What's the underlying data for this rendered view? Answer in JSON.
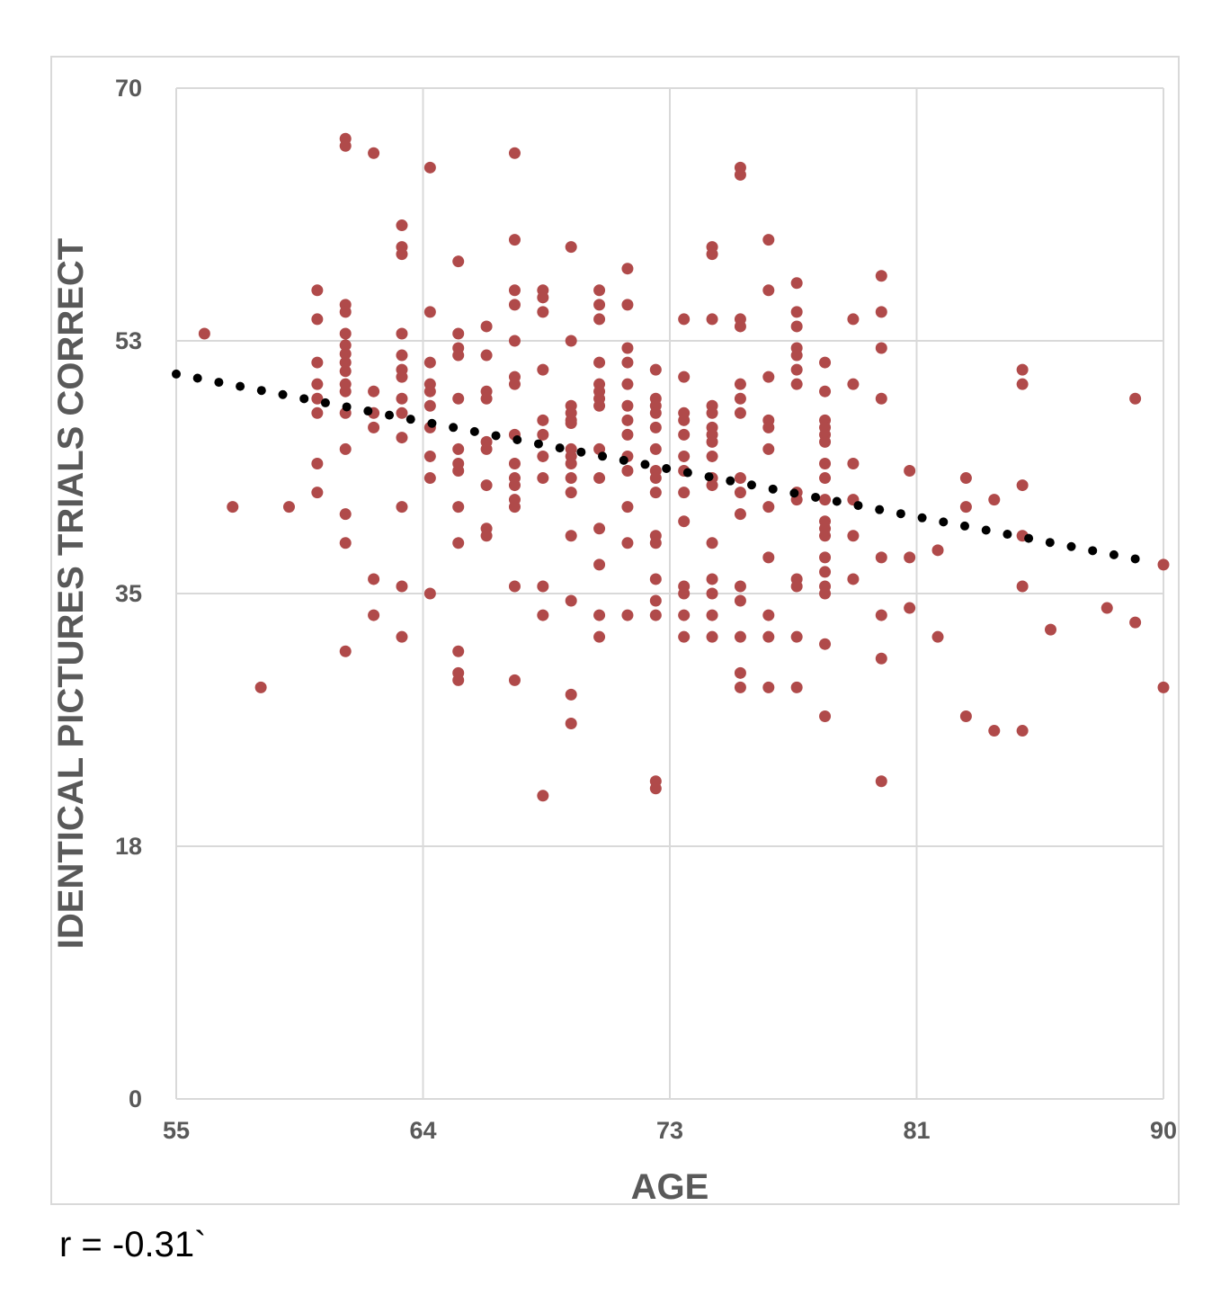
{
  "chart_data": {
    "type": "scatter",
    "title": "",
    "xlabel": "AGE",
    "ylabel": "IDENTICAL PICTURES TRIALS CORRECT",
    "xlim": [
      55,
      90
    ],
    "ylim": [
      0,
      70
    ],
    "x_ticks": [
      {
        "value": 55,
        "label": "55"
      },
      {
        "value": 63.75,
        "label": "64"
      },
      {
        "value": 72.5,
        "label": "73"
      },
      {
        "value": 81.25,
        "label": "81"
      },
      {
        "value": 90,
        "label": "90"
      }
    ],
    "y_ticks": [
      {
        "value": 0,
        "label": "0"
      },
      {
        "value": 17.5,
        "label": "18"
      },
      {
        "value": 35,
        "label": "35"
      },
      {
        "value": 52.5,
        "label": "53"
      },
      {
        "value": 70,
        "label": "70"
      }
    ],
    "grid": true,
    "trendline": {
      "style": "dotted",
      "color": "#000000",
      "x": [
        55,
        89
      ],
      "y": [
        50.2,
        37.4
      ]
    },
    "series": [
      {
        "color": "#b04a4a",
        "points": [
          [
            56,
            53
          ],
          [
            57,
            41
          ],
          [
            58,
            28.5
          ],
          [
            59,
            41
          ],
          [
            60,
            56
          ],
          [
            60,
            54
          ],
          [
            60,
            51
          ],
          [
            60,
            49.5
          ],
          [
            60,
            48.5
          ],
          [
            60,
            47.5
          ],
          [
            60,
            44
          ],
          [
            60,
            42
          ],
          [
            61,
            66.5
          ],
          [
            61,
            66
          ],
          [
            61,
            55
          ],
          [
            61,
            54.5
          ],
          [
            61,
            53
          ],
          [
            61,
            52.2
          ],
          [
            61,
            51.6
          ],
          [
            61,
            51
          ],
          [
            61,
            50.4
          ],
          [
            61,
            49.5
          ],
          [
            61,
            49
          ],
          [
            61,
            47.5
          ],
          [
            61,
            45
          ],
          [
            61,
            40.5
          ],
          [
            61,
            38.5
          ],
          [
            61,
            31
          ],
          [
            62,
            65.5
          ],
          [
            62,
            49
          ],
          [
            62,
            47.5
          ],
          [
            62,
            46.5
          ],
          [
            62,
            36
          ],
          [
            62,
            33.5
          ],
          [
            63,
            60.5
          ],
          [
            63,
            59
          ],
          [
            63,
            58.5
          ],
          [
            63,
            53
          ],
          [
            63,
            51.5
          ],
          [
            63,
            50.5
          ],
          [
            63,
            50
          ],
          [
            63,
            48.5
          ],
          [
            63,
            47.5
          ],
          [
            63,
            45.8
          ],
          [
            63,
            41
          ],
          [
            63,
            35.5
          ],
          [
            63,
            32
          ],
          [
            64,
            64.5
          ],
          [
            64,
            54.5
          ],
          [
            64,
            51
          ],
          [
            64,
            49.5
          ],
          [
            64,
            49
          ],
          [
            64,
            48
          ],
          [
            64,
            46.5
          ],
          [
            64,
            44.5
          ],
          [
            64,
            43
          ],
          [
            64,
            35
          ],
          [
            65,
            58
          ],
          [
            65,
            53
          ],
          [
            65,
            52
          ],
          [
            65,
            51.5
          ],
          [
            65,
            48.5
          ],
          [
            65,
            45
          ],
          [
            65,
            44
          ],
          [
            65,
            43.5
          ],
          [
            65,
            41
          ],
          [
            65,
            38.5
          ],
          [
            65,
            31
          ],
          [
            65,
            29.5
          ],
          [
            65,
            29
          ],
          [
            66,
            53.5
          ],
          [
            66,
            51.5
          ],
          [
            66,
            49
          ],
          [
            66,
            48.5
          ],
          [
            66,
            45.5
          ],
          [
            66,
            45
          ],
          [
            66,
            42.5
          ],
          [
            66,
            39.5
          ],
          [
            66,
            39
          ],
          [
            67,
            65.5
          ],
          [
            67,
            59.5
          ],
          [
            67,
            56
          ],
          [
            67,
            55
          ],
          [
            67,
            52.5
          ],
          [
            67,
            50
          ],
          [
            67,
            49.5
          ],
          [
            67,
            46
          ],
          [
            67,
            44
          ],
          [
            67,
            43
          ],
          [
            67,
            42.5
          ],
          [
            67,
            41.5
          ],
          [
            67,
            41
          ],
          [
            67,
            35.5
          ],
          [
            67,
            29
          ],
          [
            68,
            56
          ],
          [
            68,
            55.5
          ],
          [
            68,
            54.5
          ],
          [
            68,
            50.5
          ],
          [
            68,
            47
          ],
          [
            68,
            46
          ],
          [
            68,
            44.5
          ],
          [
            68,
            43
          ],
          [
            68,
            35.5
          ],
          [
            68,
            33.5
          ],
          [
            68,
            21
          ],
          [
            69,
            59
          ],
          [
            69,
            52.5
          ],
          [
            69,
            48
          ],
          [
            69,
            47.5
          ],
          [
            69,
            47
          ],
          [
            69,
            46.8
          ],
          [
            69,
            45
          ],
          [
            69,
            44.5
          ],
          [
            69,
            44
          ],
          [
            69,
            43
          ],
          [
            69,
            42
          ],
          [
            69,
            39
          ],
          [
            69,
            34.5
          ],
          [
            69,
            28
          ],
          [
            69,
            26
          ],
          [
            70,
            56
          ],
          [
            70,
            55
          ],
          [
            70,
            54
          ],
          [
            70,
            51
          ],
          [
            70,
            49.5
          ],
          [
            70,
            49
          ],
          [
            70,
            48.5
          ],
          [
            70,
            48
          ],
          [
            70,
            45
          ],
          [
            70,
            43
          ],
          [
            70,
            39.5
          ],
          [
            70,
            37
          ],
          [
            70,
            33.5
          ],
          [
            70,
            32
          ],
          [
            71,
            57.5
          ],
          [
            71,
            55
          ],
          [
            71,
            52
          ],
          [
            71,
            51
          ],
          [
            71,
            49.5
          ],
          [
            71,
            48
          ],
          [
            71,
            47
          ],
          [
            71,
            46
          ],
          [
            71,
            44.5
          ],
          [
            71,
            43.5
          ],
          [
            71,
            41
          ],
          [
            71,
            38.5
          ],
          [
            71,
            33.5
          ],
          [
            72,
            50.5
          ],
          [
            72,
            48.5
          ],
          [
            72,
            48
          ],
          [
            72,
            47.5
          ],
          [
            72,
            46.5
          ],
          [
            72,
            45
          ],
          [
            72,
            43.5
          ],
          [
            72,
            43
          ],
          [
            72,
            42
          ],
          [
            72,
            39
          ],
          [
            72,
            38.5
          ],
          [
            72,
            36
          ],
          [
            72,
            34.5
          ],
          [
            72,
            33.5
          ],
          [
            72,
            22
          ],
          [
            72,
            21.5
          ],
          [
            73,
            54
          ],
          [
            73,
            50
          ],
          [
            73,
            47.5
          ],
          [
            73,
            47
          ],
          [
            73,
            46
          ],
          [
            73,
            44.5
          ],
          [
            73,
            43.5
          ],
          [
            73,
            42
          ],
          [
            73,
            40
          ],
          [
            73,
            35.5
          ],
          [
            73,
            35
          ],
          [
            73,
            33.5
          ],
          [
            73,
            32
          ],
          [
            74,
            59
          ],
          [
            74,
            58.5
          ],
          [
            74,
            54
          ],
          [
            74,
            48
          ],
          [
            74,
            47.5
          ],
          [
            74,
            46.5
          ],
          [
            74,
            46
          ],
          [
            74,
            45.5
          ],
          [
            74,
            44.5
          ],
          [
            74,
            43
          ],
          [
            74,
            42.5
          ],
          [
            74,
            38.5
          ],
          [
            74,
            36
          ],
          [
            74,
            35
          ],
          [
            74,
            33.5
          ],
          [
            74,
            32
          ],
          [
            75,
            64.5
          ],
          [
            75,
            64
          ],
          [
            75,
            54
          ],
          [
            75,
            53.5
          ],
          [
            75,
            49.5
          ],
          [
            75,
            48.5
          ],
          [
            75,
            47.5
          ],
          [
            75,
            43
          ],
          [
            75,
            42
          ],
          [
            75,
            40.5
          ],
          [
            75,
            35.5
          ],
          [
            75,
            34.5
          ],
          [
            75,
            32
          ],
          [
            75,
            29.5
          ],
          [
            75,
            28.5
          ],
          [
            76,
            59.5
          ],
          [
            76,
            56
          ],
          [
            76,
            50
          ],
          [
            76,
            47
          ],
          [
            76,
            46.5
          ],
          [
            76,
            45
          ],
          [
            76,
            41
          ],
          [
            76,
            37.5
          ],
          [
            76,
            33.5
          ],
          [
            76,
            32
          ],
          [
            76,
            28.5
          ],
          [
            77,
            56.5
          ],
          [
            77,
            54.5
          ],
          [
            77,
            53.5
          ],
          [
            77,
            52
          ],
          [
            77,
            51.5
          ],
          [
            77,
            50.5
          ],
          [
            77,
            49.5
          ],
          [
            77,
            42
          ],
          [
            77,
            41.5
          ],
          [
            77,
            36
          ],
          [
            77,
            35.5
          ],
          [
            77,
            32
          ],
          [
            77,
            28.5
          ],
          [
            78,
            51
          ],
          [
            78,
            49
          ],
          [
            78,
            47
          ],
          [
            78,
            46.5
          ],
          [
            78,
            46
          ],
          [
            78,
            45.5
          ],
          [
            78,
            44
          ],
          [
            78,
            43
          ],
          [
            78,
            41.5
          ],
          [
            78,
            40
          ],
          [
            78,
            39.5
          ],
          [
            78,
            39
          ],
          [
            78,
            37.5
          ],
          [
            78,
            36.5
          ],
          [
            78,
            35.5
          ],
          [
            78,
            35
          ],
          [
            78,
            31.5
          ],
          [
            78,
            26.5
          ],
          [
            79,
            54
          ],
          [
            79,
            49.5
          ],
          [
            79,
            44
          ],
          [
            79,
            41.5
          ],
          [
            79,
            39
          ],
          [
            79,
            36
          ],
          [
            80,
            57
          ],
          [
            80,
            54.5
          ],
          [
            80,
            52
          ],
          [
            80,
            48.5
          ],
          [
            80,
            37.5
          ],
          [
            80,
            33.5
          ],
          [
            80,
            30.5
          ],
          [
            80,
            22
          ],
          [
            81,
            43.5
          ],
          [
            81,
            37.5
          ],
          [
            81,
            34
          ],
          [
            82,
            38
          ],
          [
            82,
            32
          ],
          [
            83,
            43
          ],
          [
            83,
            41
          ],
          [
            83,
            26.5
          ],
          [
            84,
            41.5
          ],
          [
            84,
            25.5
          ],
          [
            85,
            50.5
          ],
          [
            85,
            49.5
          ],
          [
            85,
            42.5
          ],
          [
            85,
            39
          ],
          [
            85,
            35.5
          ],
          [
            85,
            25.5
          ],
          [
            86,
            32.5
          ],
          [
            88,
            34
          ],
          [
            89,
            48.5
          ],
          [
            89,
            33
          ],
          [
            90,
            37
          ],
          [
            90,
            28.5
          ]
        ]
      }
    ]
  },
  "annotation": {
    "text": "r = -0.31`"
  }
}
